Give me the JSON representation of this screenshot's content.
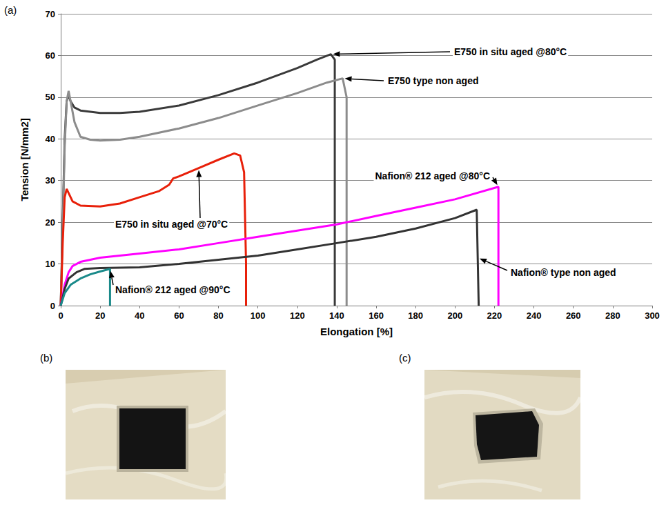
{
  "panel_labels": [
    "(a)",
    "(b)",
    "(c)"
  ],
  "chart_data": {
    "type": "line",
    "x_label": "Elongation [%]",
    "y_label": "Tension [N/mm2]",
    "xlim": [
      0,
      300
    ],
    "xticks": [
      0,
      20,
      40,
      60,
      80,
      100,
      120,
      140,
      160,
      180,
      200,
      220,
      240,
      260,
      280,
      300
    ],
    "ylim": [
      0,
      70
    ],
    "yticks": [
      0,
      10,
      20,
      30,
      40,
      50,
      60,
      70
    ],
    "grid": true,
    "series": [
      {
        "name": "E750 in situ aged @80°C",
        "color": "#3a3a3a",
        "line_style": "solid",
        "x": [
          0,
          1,
          2,
          3,
          4,
          5,
          7,
          10,
          20,
          30,
          40,
          60,
          80,
          100,
          120,
          130,
          137,
          139,
          139
        ],
        "values": [
          0,
          20,
          40,
          49,
          50.5,
          49,
          47.5,
          46.8,
          46.2,
          46.2,
          46.5,
          48,
          50.5,
          53.5,
          57,
          59,
          60.3,
          59,
          0
        ]
      },
      {
        "name": "E750 type non aged",
        "color": "#8c8c8c",
        "line_style": "solid",
        "x": [
          0,
          1,
          2,
          3,
          4,
          5,
          7,
          10,
          15,
          20,
          30,
          40,
          60,
          80,
          100,
          120,
          135,
          143,
          145,
          145
        ],
        "values": [
          0,
          18,
          38,
          49,
          51.5,
          49,
          44,
          40.5,
          39.8,
          39.6,
          39.8,
          40.5,
          42.5,
          45,
          48,
          51,
          53.5,
          54.5,
          50,
          0
        ]
      },
      {
        "name": "E750 in situ aged @70°C",
        "color": "#e8200a",
        "line_style": "solid",
        "x": [
          0,
          1,
          2,
          3,
          4,
          6,
          10,
          20,
          30,
          40,
          50,
          55,
          57,
          60,
          70,
          80,
          88,
          91,
          93,
          94,
          94
        ],
        "values": [
          0,
          15,
          26,
          28,
          27,
          25,
          24,
          23.8,
          24.5,
          26,
          27.5,
          29,
          30.5,
          31,
          33,
          35,
          36.5,
          36,
          32,
          10,
          0
        ]
      },
      {
        "name": "Nafion® 212 aged @80°C",
        "color": "#ff00ff",
        "line_style": "solid",
        "x": [
          0,
          2,
          4,
          6,
          10,
          20,
          40,
          60,
          80,
          100,
          120,
          140,
          160,
          180,
          200,
          222,
          222
        ],
        "values": [
          0,
          5,
          8,
          9.5,
          10.5,
          11.5,
          12.5,
          13.5,
          15,
          16.5,
          18,
          19.5,
          21.5,
          23.5,
          25.5,
          28.5,
          0
        ]
      },
      {
        "name": "Nafion® type non aged",
        "color": "#333333",
        "line_style": "solid",
        "x": [
          0,
          2,
          4,
          8,
          12,
          20,
          40,
          60,
          80,
          100,
          120,
          140,
          160,
          180,
          200,
          211,
          212
        ],
        "values": [
          0,
          4,
          6.5,
          8,
          8.8,
          9,
          9.2,
          10,
          11,
          12,
          13.5,
          15,
          16.5,
          18.5,
          21,
          23,
          0
        ]
      },
      {
        "name": "Nafion® 212 aged @90°C",
        "color": "#1a8a8a",
        "line_style": "solid",
        "x": [
          0,
          2,
          5,
          10,
          15,
          20,
          25,
          25
        ],
        "values": [
          0,
          3,
          5,
          6.5,
          7.5,
          8.2,
          8.8,
          0
        ]
      }
    ]
  }
}
